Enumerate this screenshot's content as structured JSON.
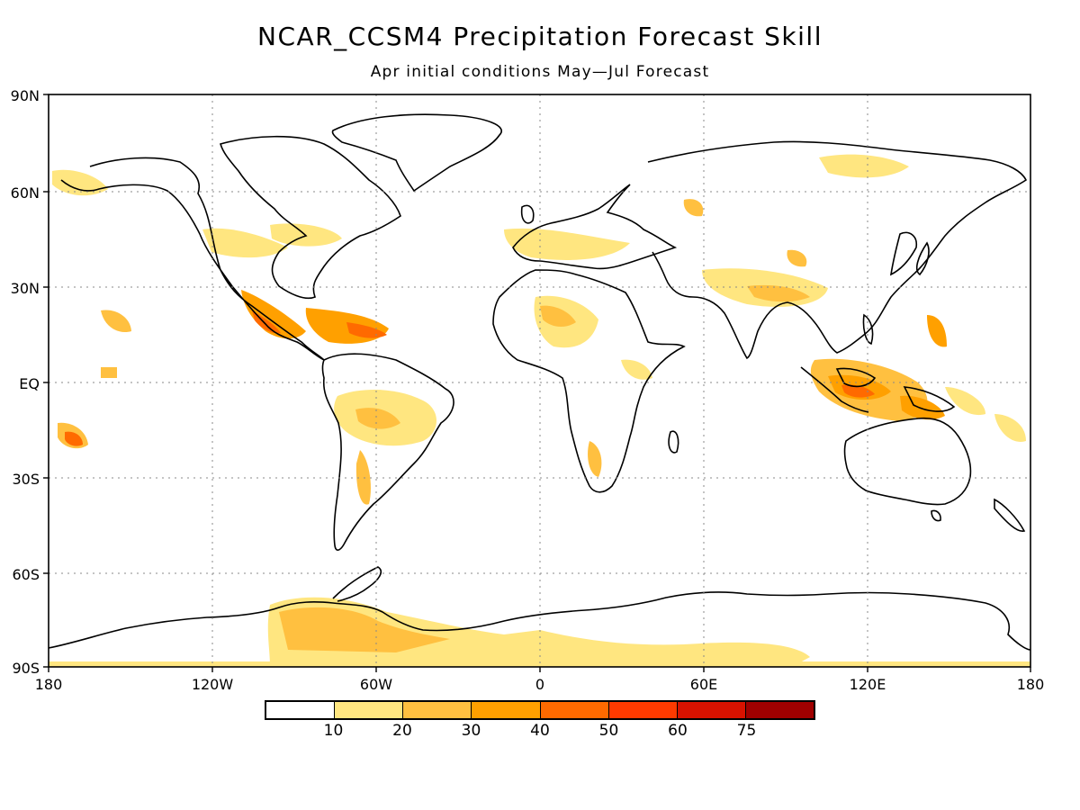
{
  "title": "NCAR_CCSM4 Precipitation Forecast Skill",
  "subtitle": "Apr initial conditions   May—Jul Forecast",
  "lat_ticks": [
    "90N",
    "60N",
    "30N",
    "EQ",
    "30S",
    "60S",
    "90S"
  ],
  "lon_ticks": [
    "180",
    "120W",
    "60W",
    "0",
    "60E",
    "120E",
    "180"
  ],
  "legend": {
    "colors": [
      "#ffffff",
      "#ffe680",
      "#ffc040",
      "#ffa000",
      "#ff6a00",
      "#ff3a00",
      "#d81200",
      "#a00000"
    ],
    "labels": [
      "10",
      "20",
      "30",
      "40",
      "50",
      "60",
      "75"
    ]
  },
  "colors": {
    "low": "#ffe680",
    "mid": "#ffc040",
    "high": "#ffa000",
    "very_high": "#ff6a00",
    "coast": "#000000"
  }
}
